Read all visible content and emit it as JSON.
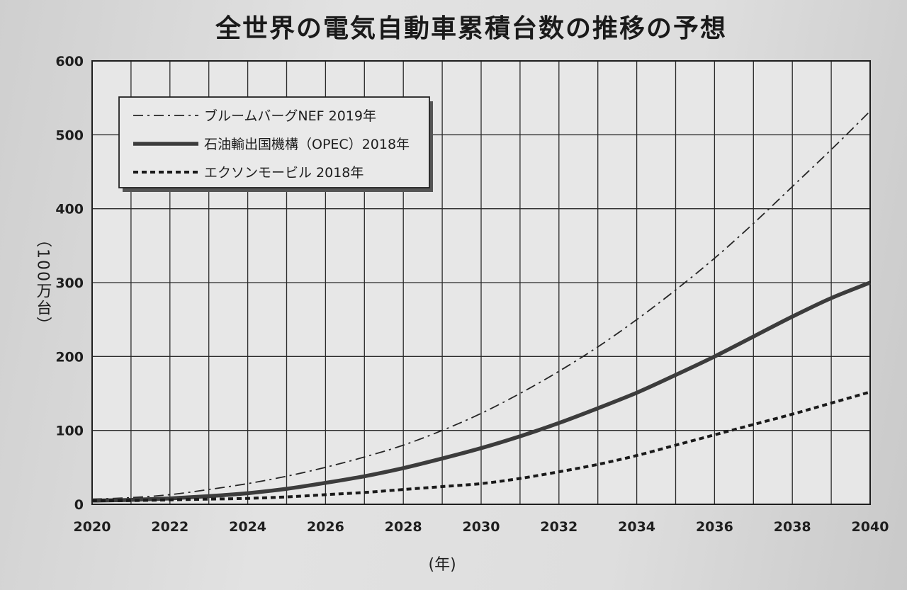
{
  "chart_data": {
    "type": "line",
    "title": "全世界の電気自動車累積台数の推移の予想",
    "xlabel": "(年)",
    "ylabel": "（100万台）",
    "xlim": [
      2020,
      2040
    ],
    "ylim": [
      0,
      600
    ],
    "x_ticks": [
      "2020",
      "2022",
      "2024",
      "2026",
      "2028",
      "2030",
      "2032",
      "2034",
      "2036",
      "2038",
      "2040"
    ],
    "y_ticks": [
      "0",
      "100",
      "200",
      "300",
      "400",
      "500",
      "600"
    ],
    "grid": true,
    "legend_position": "top-left",
    "x": [
      2020,
      2021,
      2022,
      2023,
      2024,
      2025,
      2026,
      2027,
      2028,
      2029,
      2030,
      2031,
      2032,
      2033,
      2034,
      2035,
      2036,
      2037,
      2038,
      2039,
      2040
    ],
    "series": [
      {
        "name": "ブルームバーグNEF 2019年",
        "style": "dash-dot",
        "values": [
          7,
          9,
          13,
          20,
          28,
          38,
          50,
          64,
          80,
          100,
          123,
          150,
          180,
          213,
          250,
          290,
          333,
          380,
          430,
          480,
          532
        ]
      },
      {
        "name": "石油輸出国機構（OPEC）2018年",
        "style": "solid",
        "values": [
          5,
          6,
          8,
          11,
          15,
          21,
          29,
          38,
          49,
          62,
          76,
          92,
          110,
          130,
          151,
          175,
          200,
          227,
          254,
          279,
          300
        ]
      },
      {
        "name": "エクソンモービル 2018年",
        "style": "dotted",
        "values": [
          5,
          5,
          6,
          7,
          8,
          10,
          13,
          16,
          20,
          24,
          28,
          35,
          44,
          54,
          66,
          80,
          94,
          108,
          122,
          137,
          152
        ]
      }
    ]
  }
}
